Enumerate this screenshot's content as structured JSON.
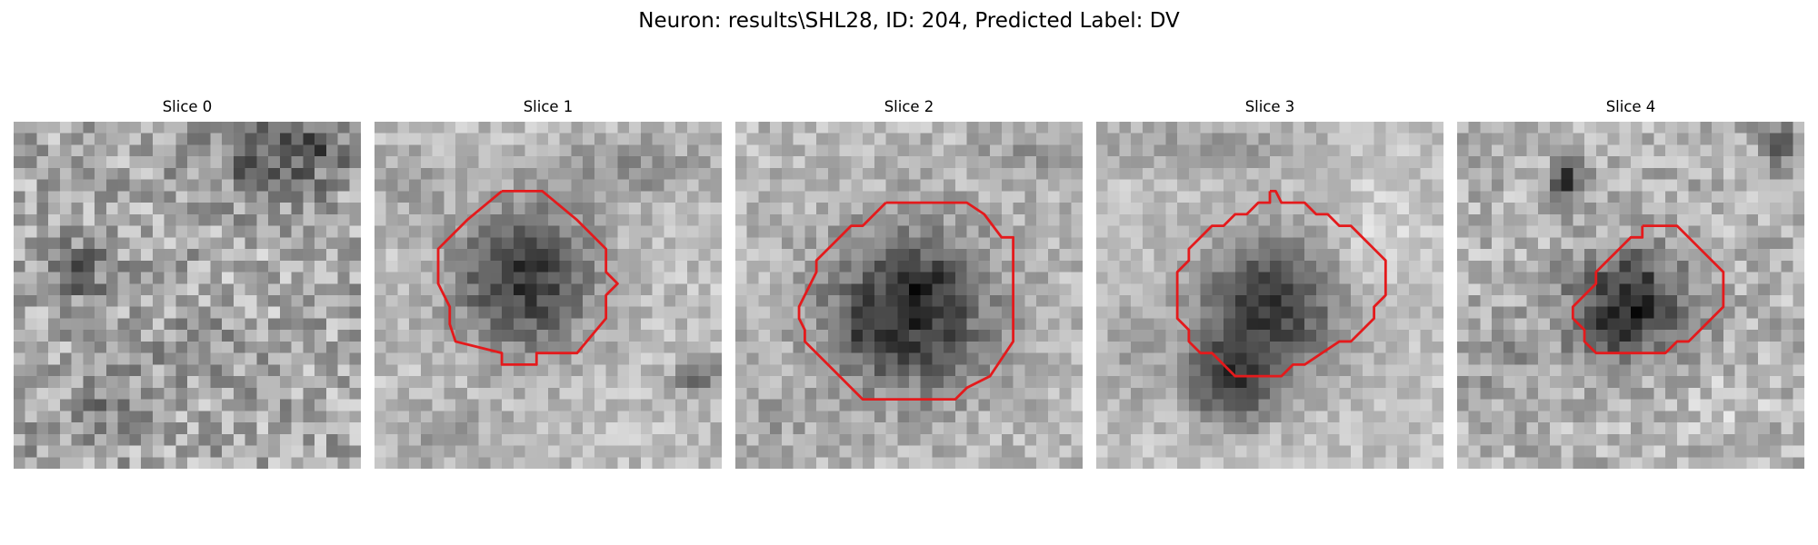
{
  "figure": {
    "title": "Neuron: results\\SHL28, ID: 204, Predicted Label: DV"
  },
  "contour_color": "#e41a1c",
  "panels": [
    {
      "title": "Slice 0",
      "has_contour": false
    },
    {
      "title": "Slice 1",
      "has_contour": true
    },
    {
      "title": "Slice 2",
      "has_contour": true
    },
    {
      "title": "Slice 3",
      "has_contour": true
    },
    {
      "title": "Slice 4",
      "has_contour": true
    }
  ]
}
